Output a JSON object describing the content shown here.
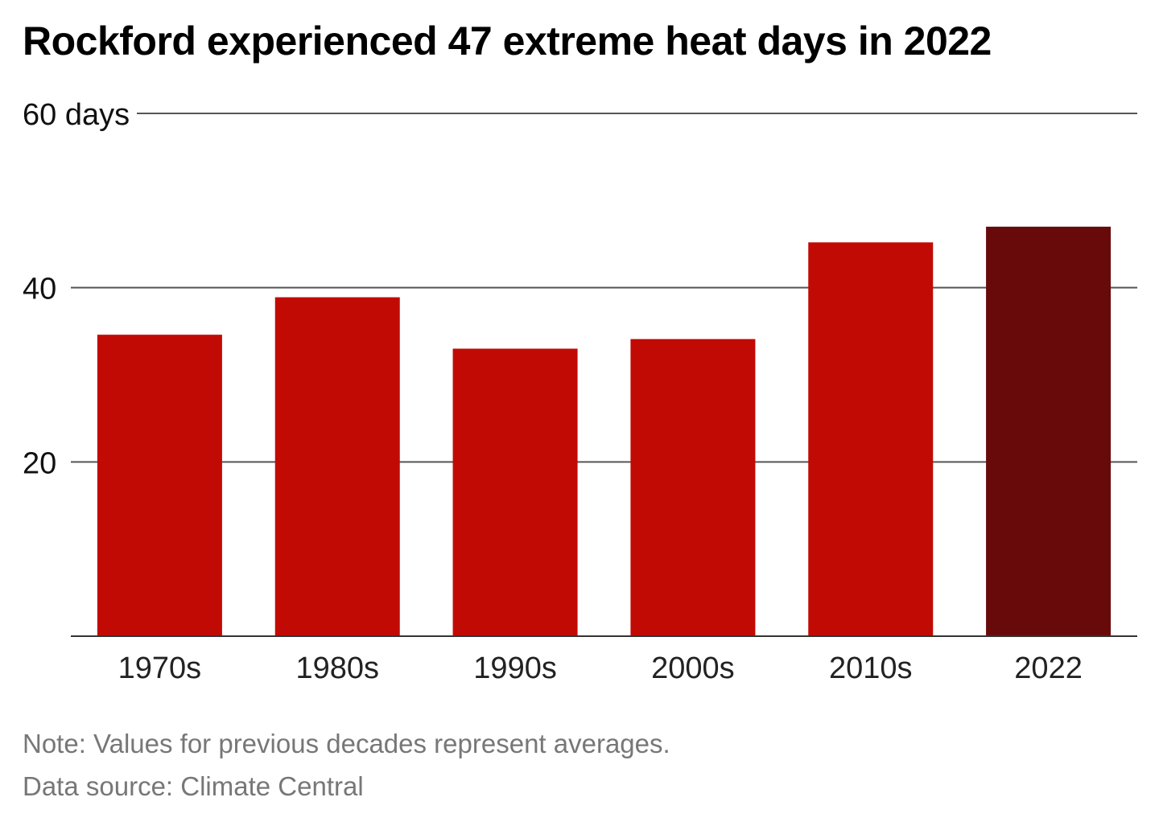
{
  "chart_data": {
    "type": "bar",
    "title": "Rockford experienced 47 extreme heat days in 2022",
    "unit_label": "60 days",
    "categories": [
      "1970s",
      "1980s",
      "1990s",
      "2000s",
      "2010s",
      "2022"
    ],
    "values": [
      34.6,
      38.9,
      33.0,
      34.1,
      45.2,
      47.0
    ],
    "bar_colors": [
      "#c20a05",
      "#c20a05",
      "#c20a05",
      "#c20a05",
      "#c20a05",
      "#690a0a"
    ],
    "ylim": [
      0,
      60
    ],
    "yticks": [
      {
        "value": 20,
        "label": "20"
      },
      {
        "value": 40,
        "label": "40"
      },
      {
        "value": 60,
        "label": "60 days"
      }
    ],
    "grid": true,
    "xlabel": "",
    "ylabel": ""
  },
  "notes": {
    "note": "Note: Values for previous decades represent averages.",
    "source": "Data source: Climate Central"
  }
}
